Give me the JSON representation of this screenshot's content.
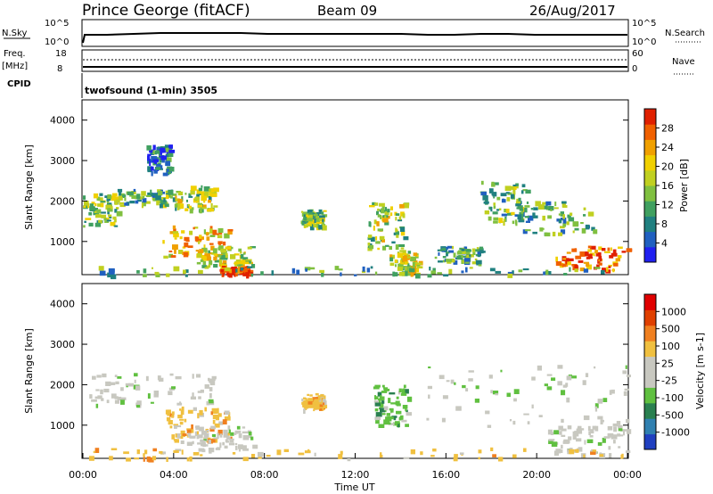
{
  "header": {
    "station": "Prince George (fitACF)",
    "beam": "Beam 09",
    "date": "26/Aug/2017"
  },
  "top_panels": {
    "nsky_label": "N.Sky",
    "nsearch_label": "N.Search",
    "nsky_ticks": [
      "10^5",
      "10^0"
    ],
    "nsearch_ticks": [
      "10^5",
      "10^0"
    ],
    "freq_label_line1": "Freq.",
    "freq_label_line2": "[MHz]",
    "freq_ticks": [
      "18",
      "8"
    ],
    "nave_label": "Nave",
    "nave_ticks": [
      "60",
      "0"
    ],
    "cpid_label": "CPID",
    "cpid_text": "twofsound (1-min) 3505"
  },
  "chart_data": [
    {
      "type": "heatmap",
      "name": "power",
      "ylabel": "Slant Range [km]",
      "xlabel": "",
      "xlim": [
        0,
        24
      ],
      "ylim": [
        180,
        4500
      ],
      "y_ticks": [
        "4000",
        "3000",
        "2000",
        "1000"
      ],
      "colorbar": {
        "label": "Power [dB]",
        "ticks": [
          "28",
          "24",
          "20",
          "16",
          "12",
          "8",
          "4"
        ],
        "colors": [
          "#2020f0",
          "#2060c0",
          "#208080",
          "#40a060",
          "#80c040",
          "#c0d020",
          "#f0d000",
          "#f0a000",
          "#f06000",
          "#e02000"
        ]
      },
      "regions": [
        {
          "t0": 0.0,
          "t1": 1.5,
          "r0": 1400,
          "r1": 2200,
          "level": 0.45
        },
        {
          "t0": 1.5,
          "t1": 4.0,
          "r0": 1900,
          "r1": 2300,
          "level": 0.4
        },
        {
          "t0": 4.0,
          "t1": 5.8,
          "r0": 1800,
          "r1": 2400,
          "level": 0.5
        },
        {
          "t0": 2.8,
          "t1": 3.8,
          "r0": 2700,
          "r1": 3400,
          "level": 0.2
        },
        {
          "t0": 3.5,
          "t1": 6.5,
          "r0": 600,
          "r1": 1400,
          "level": 0.65
        },
        {
          "t0": 5.0,
          "t1": 7.5,
          "r0": 400,
          "r1": 900,
          "level": 0.55
        },
        {
          "t0": 6.0,
          "t1": 7.3,
          "r0": 200,
          "r1": 400,
          "level": 0.95
        },
        {
          "t0": 9.6,
          "t1": 10.6,
          "r0": 1400,
          "r1": 1800,
          "level": 0.45
        },
        {
          "t0": 12.5,
          "t1": 14.2,
          "r0": 800,
          "r1": 2000,
          "level": 0.5
        },
        {
          "t0": 13.5,
          "t1": 14.8,
          "r0": 200,
          "r1": 800,
          "level": 0.55
        },
        {
          "t0": 15.5,
          "t1": 17.5,
          "r0": 500,
          "r1": 900,
          "level": 0.35
        },
        {
          "t0": 17.5,
          "t1": 19.5,
          "r0": 1500,
          "r1": 2500,
          "level": 0.4
        },
        {
          "t0": 19.0,
          "t1": 22.5,
          "r0": 1200,
          "r1": 2000,
          "level": 0.35
        },
        {
          "t0": 20.8,
          "t1": 24.0,
          "r0": 300,
          "r1": 900,
          "level": 0.85
        },
        {
          "t0": 0.0,
          "t1": 24.0,
          "r0": 180,
          "r1": 400,
          "level": 0.35
        }
      ]
    },
    {
      "type": "heatmap",
      "name": "velocity",
      "ylabel": "Slant Range [km]",
      "xlabel": "Time UT",
      "xlim": [
        0,
        24
      ],
      "ylim": [
        180,
        4500
      ],
      "x_ticks": [
        "00:00",
        "04:00",
        "08:00",
        "12:00",
        "16:00",
        "20:00",
        "00:00"
      ],
      "y_ticks": [
        "4000",
        "3000",
        "2000",
        "1000"
      ],
      "colorbar": {
        "label": "Velocity [m s-1]",
        "ticks": [
          "1000",
          "500",
          "100",
          "25",
          "-25",
          "-100",
          "-500",
          "-1000"
        ],
        "colors": [
          "#2040c0",
          "#3080b0",
          "#2a8050",
          "#60c040",
          "#c8c8c0",
          "#c8c8c0",
          "#f0c040",
          "#f08020",
          "#e04000",
          "#e00000"
        ]
      },
      "regions": [
        {
          "t0": 0.0,
          "t1": 5.8,
          "r0": 1500,
          "r1": 2300,
          "color": 4
        },
        {
          "t0": 3.6,
          "t1": 6.5,
          "r0": 600,
          "r1": 1500,
          "color": 6
        },
        {
          "t0": 4.0,
          "t1": 7.5,
          "r0": 400,
          "r1": 1000,
          "color": 4
        },
        {
          "t0": 9.6,
          "t1": 10.6,
          "r0": 1400,
          "r1": 1800,
          "color": 6
        },
        {
          "t0": 12.8,
          "t1": 14.3,
          "r0": 1000,
          "r1": 2000,
          "color": 3
        },
        {
          "t0": 15.0,
          "t1": 24.0,
          "r0": 1000,
          "r1": 2500,
          "color": 4
        },
        {
          "t0": 20.5,
          "t1": 24.0,
          "r0": 300,
          "r1": 1000,
          "color": 4
        },
        {
          "t0": 0.0,
          "t1": 24.0,
          "r0": 180,
          "r1": 450,
          "color": 6
        }
      ]
    }
  ]
}
